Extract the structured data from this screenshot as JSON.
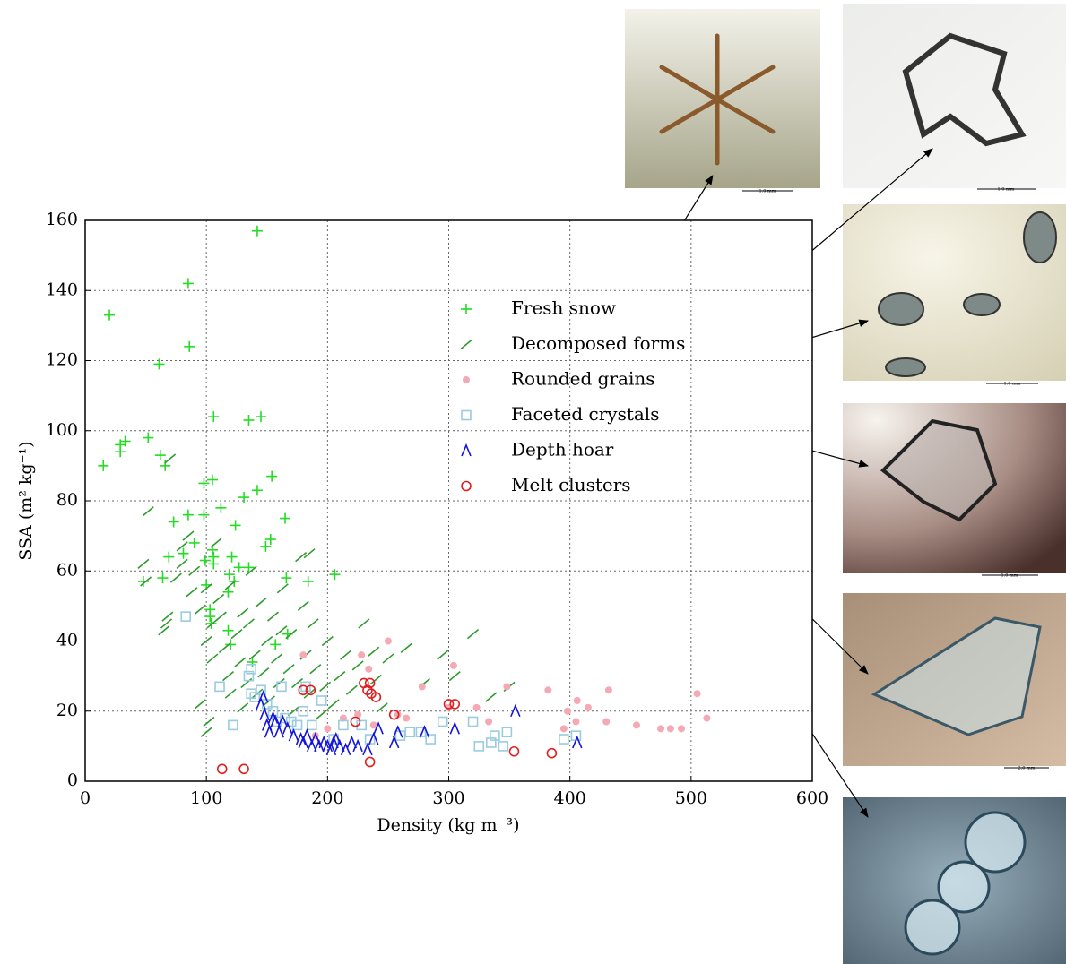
{
  "chart_data": {
    "type": "scatter",
    "xlabel": "Density (kg m⁻³)",
    "ylabel": "SSA (m² kg⁻¹)",
    "xlim": [
      0,
      600
    ],
    "ylim": [
      0,
      160
    ],
    "xticks": [
      0,
      100,
      200,
      300,
      400,
      500,
      600
    ],
    "yticks": [
      0,
      20,
      40,
      60,
      80,
      100,
      120,
      140,
      160
    ],
    "grid": true,
    "legend": "center right",
    "annotations": [
      "1.0 mm",
      "1.0 mm",
      "1.0 mm",
      "1.0 mm",
      "2.0 mm"
    ],
    "series": [
      {
        "name": "Fresh snow",
        "color": "#22dd22",
        "marker": "+",
        "x": [
          20,
          85,
          142,
          86,
          61,
          29,
          29,
          15,
          33,
          52,
          62,
          66,
          106,
          135,
          145,
          98,
          105,
          131,
          142,
          154,
          112,
          73,
          85,
          98,
          124,
          165,
          81,
          90,
          105,
          106,
          106,
          99,
          69,
          64,
          48,
          149,
          153,
          121,
          127,
          135,
          119,
          123,
          118,
          166,
          184,
          206,
          100,
          103,
          103,
          104,
          118,
          120,
          138,
          157,
          167
        ],
        "values": [
          133,
          142,
          157,
          124,
          119,
          96,
          94,
          90,
          97,
          98,
          93,
          90,
          104,
          103,
          104,
          85,
          86,
          81,
          83,
          87,
          78,
          74,
          76,
          76,
          73,
          75,
          65,
          68,
          66,
          64,
          62,
          63,
          64,
          58,
          57,
          67,
          69,
          64,
          61,
          61,
          59,
          57,
          54,
          58,
          57,
          59,
          56,
          49,
          47,
          45,
          43,
          39,
          34,
          39,
          42
        ]
      },
      {
        "name": "Decomposed forms",
        "color": "#2e9b2e",
        "marker": "/",
        "x": [
          50,
          48,
          52,
          65,
          67,
          68,
          70,
          75,
          80,
          80,
          85,
          88,
          90,
          95,
          100,
          100,
          105,
          105,
          108,
          110,
          112,
          115,
          118,
          120,
          120,
          125,
          128,
          130,
          130,
          133,
          135,
          137,
          140,
          142,
          145,
          147,
          150,
          152,
          155,
          158,
          160,
          162,
          163,
          168,
          170,
          172,
          175,
          178,
          180,
          182,
          185,
          185,
          188,
          190,
          195,
          198,
          200,
          205,
          210,
          215,
          220,
          225,
          230,
          238,
          240,
          245,
          250,
          265,
          280,
          295,
          305,
          320,
          335,
          350,
          100,
          102,
          95
        ],
        "values": [
          57,
          62,
          77,
          43,
          45,
          47,
          92,
          58,
          62,
          67,
          70,
          54,
          60,
          49,
          40,
          55,
          45,
          35,
          68,
          52,
          47,
          38,
          30,
          56,
          25,
          42,
          34,
          48,
          21,
          28,
          45,
          60,
          36,
          25,
          51,
          31,
          40,
          23,
          47,
          35,
          28,
          43,
          55,
          32,
          42,
          20,
          28,
          64,
          50,
          36,
          65,
          25,
          45,
          32,
          19,
          27,
          40,
          22,
          30,
          36,
          26,
          33,
          45,
          37,
          29,
          21,
          35,
          38,
          28,
          36,
          30,
          42,
          24,
          27,
          14,
          17,
          22
        ]
      },
      {
        "name": "Rounded grains",
        "color": "#f4a9b4",
        "marker": "dot",
        "x": [
          180,
          213,
          225,
          228,
          234,
          238,
          250,
          258,
          265,
          278,
          300,
          304,
          323,
          333,
          348,
          382,
          395,
          398,
          405,
          406,
          415,
          430,
          432,
          455,
          475,
          483,
          492,
          505,
          513,
          200,
          190
        ],
        "values": [
          36,
          18,
          19,
          36,
          32,
          16,
          40,
          19,
          18,
          27,
          21,
          33,
          21,
          17,
          27,
          26,
          15,
          20,
          17,
          23,
          21,
          17,
          26,
          16,
          15,
          15,
          15,
          25,
          18,
          15,
          13
        ]
      },
      {
        "name": "Faceted crystals",
        "color": "#99cce0",
        "marker": "square",
        "x": [
          83,
          111,
          122,
          135,
          137,
          137,
          140,
          145,
          150,
          155,
          158,
          162,
          165,
          170,
          175,
          180,
          182,
          187,
          195,
          205,
          213,
          228,
          235,
          260,
          268,
          277,
          285,
          295,
          320,
          325,
          335,
          338,
          345,
          348,
          395,
          405
        ],
        "values": [
          47,
          27,
          16,
          30,
          32,
          25,
          24,
          26,
          22,
          20,
          17,
          27,
          18,
          17,
          16,
          20,
          27,
          16,
          23,
          12,
          16,
          16,
          12,
          13,
          14,
          14,
          12,
          17,
          17,
          10,
          11,
          13,
          10,
          14,
          12,
          13
        ]
      },
      {
        "name": "Depth hoar",
        "color": "#1515dd",
        "marker": "^",
        "x": [
          145,
          147,
          148,
          150,
          152,
          155,
          157,
          160,
          163,
          167,
          172,
          178,
          180,
          183,
          187,
          190,
          193,
          197,
          200,
          203,
          205,
          207,
          210,
          215,
          220,
          225,
          233,
          238,
          242,
          255,
          258,
          305,
          355,
          406,
          280
        ],
        "values": [
          22,
          24,
          19,
          16,
          14,
          18,
          17,
          14,
          17,
          15,
          13,
          12,
          11,
          13,
          10,
          12,
          10,
          11,
          10,
          9,
          11,
          12,
          10,
          9,
          11,
          10,
          9,
          12,
          15,
          11,
          14,
          15,
          20,
          11,
          14
        ]
      },
      {
        "name": "Melt clusters",
        "color": "#e02020",
        "marker": "o",
        "x": [
          113,
          131,
          180,
          186,
          223,
          230,
          235,
          236,
          240,
          233,
          235,
          255,
          300,
          305,
          354,
          385
        ],
        "values": [
          3.5,
          3.5,
          26,
          26,
          17,
          28,
          28,
          25,
          24,
          26,
          5.5,
          19,
          22,
          22,
          8.5,
          8
        ]
      }
    ]
  }
}
